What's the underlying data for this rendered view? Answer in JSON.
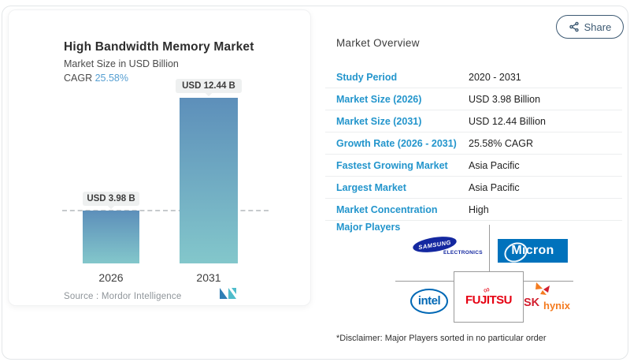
{
  "share": {
    "label": "Share"
  },
  "chart_card": {
    "title": "High Bandwidth Memory Market",
    "subtitle": "Market Size in USD Billion",
    "cagr_label": "CAGR ",
    "cagr_value": "25.58%",
    "source_label": "Source :  ",
    "source_value": "Mordor Intelligence",
    "bars": [
      {
        "year": "2026",
        "label": "USD 3.98 B",
        "value": 3.98
      },
      {
        "year": "2031",
        "label": "USD 12.44 B",
        "value": 12.44
      }
    ]
  },
  "chart_data": {
    "type": "bar",
    "title": "High Bandwidth Memory Market",
    "subtitle": "Market Size in USD Billion",
    "cagr": "25.58%",
    "categories": [
      "2026",
      "2031"
    ],
    "values": [
      3.98,
      12.44
    ],
    "value_labels": [
      "USD 3.98 B",
      "USD 12.44 B"
    ],
    "ylabel": "Market Size in USD Billion",
    "reference_line": 3.98,
    "grid": false,
    "source": "Mordor Intelligence"
  },
  "overview": {
    "title": "Market Overview",
    "rows": [
      {
        "label": "Study Period",
        "value": "2020 - 2031"
      },
      {
        "label": "Market Size (2026)",
        "value": "USD 3.98 Billion"
      },
      {
        "label": "Market Size (2031)",
        "value": "USD 12.44 Billion"
      },
      {
        "label": "Growth Rate (2026 - 2031)",
        "value": "25.58% CAGR"
      },
      {
        "label": "Fastest Growing Market",
        "value": "Asia Pacific"
      },
      {
        "label": "Largest Market",
        "value": "Asia Pacific"
      },
      {
        "label": "Market Concentration",
        "value": "High"
      }
    ],
    "major_players_label": "Major Players",
    "players": {
      "samsung": {
        "text": "SAMSUNG",
        "sub": "ELECTRONICS"
      },
      "micron": {
        "text": "Micron"
      },
      "intel": {
        "text": "intel"
      },
      "fujitsu": {
        "text": "FUJITSU",
        "symbol": "∞"
      },
      "sk_hynix": {
        "text1": "SK",
        "text2": "hynix"
      }
    },
    "disclaimer": "*Disclaimer: Major Players sorted in no particular order"
  },
  "colors": {
    "accent_blue": "#2395cc",
    "cagr_blue": "#569fd2",
    "bar_top": "#5d8fba",
    "bar_bottom": "#83c7cb",
    "share_navy": "#3d5a73",
    "samsung_navy": "#1428a0",
    "micron_blue": "#0072bc",
    "intel_blue": "#0068b5",
    "fujitsu_red": "#e60012",
    "sk_red": "#d22030",
    "hynix_orange": "#f47b20"
  }
}
